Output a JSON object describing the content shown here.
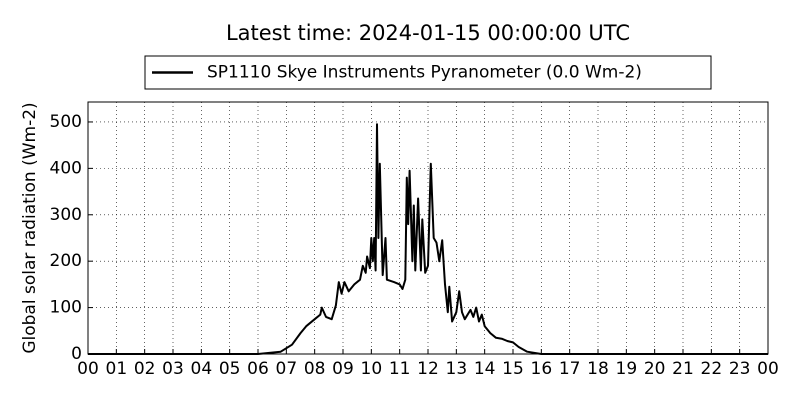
{
  "chart_data": {
    "type": "line",
    "title": "Latest time: 2024-01-15 00:00:00 UTC",
    "y_label": "Global solar radiation (Wm-2)",
    "legend": "upper center",
    "grid": true,
    "xlim": [
      0,
      24
    ],
    "xticks": [
      {
        "value": 0,
        "label": "00"
      },
      {
        "value": 1,
        "label": "01"
      },
      {
        "value": 2,
        "label": "02"
      },
      {
        "value": 3,
        "label": "03"
      },
      {
        "value": 4,
        "label": "04"
      },
      {
        "value": 5,
        "label": "05"
      },
      {
        "value": 6,
        "label": "06"
      },
      {
        "value": 7,
        "label": "07"
      },
      {
        "value": 8,
        "label": "08"
      },
      {
        "value": 9,
        "label": "09"
      },
      {
        "value": 10,
        "label": "10"
      },
      {
        "value": 11,
        "label": "11"
      },
      {
        "value": 12,
        "label": "12"
      },
      {
        "value": 13,
        "label": "13"
      },
      {
        "value": 14,
        "label": "14"
      },
      {
        "value": 15,
        "label": "15"
      },
      {
        "value": 16,
        "label": "16"
      },
      {
        "value": 17,
        "label": "17"
      },
      {
        "value": 18,
        "label": "18"
      },
      {
        "value": 19,
        "label": "19"
      },
      {
        "value": 20,
        "label": "20"
      },
      {
        "value": 21,
        "label": "21"
      },
      {
        "value": 22,
        "label": "22"
      },
      {
        "value": 23,
        "label": "23"
      },
      {
        "value": 24,
        "label": "00"
      }
    ],
    "ylim": [
      0,
      543
    ],
    "yticks": [
      0,
      100,
      200,
      300,
      400,
      500
    ],
    "x": [
      0,
      6,
      6.8,
      7.2,
      7.5,
      7.7,
      8,
      8.2,
      8.25,
      8.4,
      8.6,
      8.75,
      8.85,
      8.95,
      9.05,
      9.2,
      9.4,
      9.6,
      9.7,
      9.8,
      9.85,
      9.95,
      10,
      10.05,
      10.1,
      10.15,
      10.2,
      10.25,
      10.3,
      10.4,
      10.5,
      10.55,
      10.8,
      11,
      11.1,
      11.2,
      11.25,
      11.3,
      11.35,
      11.45,
      11.5,
      11.55,
      11.65,
      11.75,
      11.8,
      11.9,
      12,
      12.05,
      12.1,
      12.2,
      12.3,
      12.4,
      12.5,
      12.6,
      12.7,
      12.75,
      12.85,
      13,
      13.1,
      13.2,
      13.3,
      13.5,
      13.6,
      13.7,
      13.8,
      13.9,
      14,
      14.2,
      14.4,
      14.6,
      14.8,
      15,
      15.2,
      15.5,
      15.8,
      16,
      24
    ],
    "series": [
      {
        "name": "SP1110 Skye Instruments Pyranometer (0.0 Wm-2)",
        "color": "#000000",
        "values": [
          0,
          0,
          5,
          20,
          45,
          60,
          75,
          85,
          100,
          80,
          75,
          105,
          155,
          130,
          155,
          135,
          150,
          160,
          190,
          175,
          210,
          185,
          250,
          200,
          250,
          180,
          495,
          250,
          410,
          170,
          250,
          160,
          155,
          150,
          140,
          160,
          380,
          280,
          395,
          200,
          320,
          180,
          335,
          180,
          290,
          175,
          190,
          300,
          410,
          250,
          240,
          200,
          245,
          150,
          90,
          145,
          70,
          90,
          135,
          90,
          75,
          95,
          80,
          100,
          70,
          85,
          60,
          45,
          35,
          33,
          28,
          25,
          15,
          5,
          2,
          0,
          0
        ]
      }
    ]
  }
}
